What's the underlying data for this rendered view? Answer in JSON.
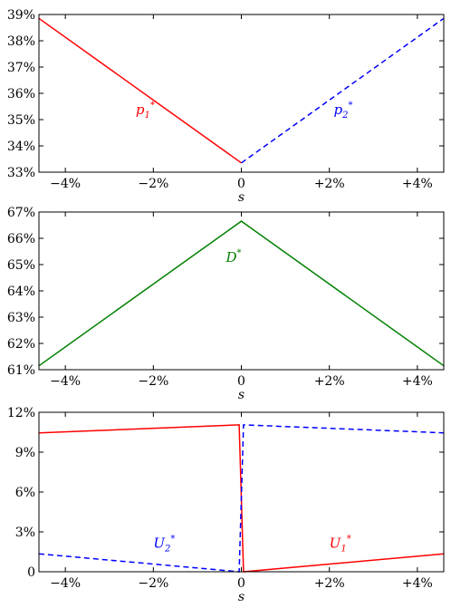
{
  "chart_data": [
    {
      "type": "line",
      "xlabel": "s",
      "xlim": [
        -4.6,
        4.6
      ],
      "ylim": [
        33,
        39
      ],
      "x_ticks": [
        "−4%",
        "−2%",
        "0",
        "+2%",
        "+4%"
      ],
      "x_tick_values": [
        -4,
        -2,
        0,
        2,
        4
      ],
      "y_ticks": [
        "33%",
        "34%",
        "35%",
        "36%",
        "37%",
        "38%",
        "39%"
      ],
      "y_tick_values": [
        33,
        34,
        35,
        36,
        37,
        38,
        39
      ],
      "series": [
        {
          "color": "#ff0000",
          "dash": "solid",
          "x": [
            -4.6,
            0
          ],
          "y": [
            38.85,
            33.35
          ]
        },
        {
          "color": "#0000ff",
          "dash": "dashed",
          "x": [
            0,
            4.6
          ],
          "y": [
            33.35,
            38.85
          ]
        }
      ],
      "annotations": [
        {
          "base": "p",
          "sub": "1",
          "sup": "*",
          "color": "#ff0000",
          "x": -2.4,
          "y": 35.2
        },
        {
          "base": "p",
          "sub": "2",
          "sup": "*",
          "color": "#0000ff",
          "x": 2.1,
          "y": 35.2
        }
      ]
    },
    {
      "type": "line",
      "xlabel": "s",
      "xlim": [
        -4.6,
        4.6
      ],
      "ylim": [
        61,
        67
      ],
      "x_ticks": [
        "−4%",
        "−2%",
        "0",
        "+2%",
        "+4%"
      ],
      "x_tick_values": [
        -4,
        -2,
        0,
        2,
        4
      ],
      "y_ticks": [
        "61%",
        "62%",
        "63%",
        "64%",
        "65%",
        "66%",
        "67%"
      ],
      "y_tick_values": [
        61,
        62,
        63,
        64,
        65,
        66,
        67
      ],
      "series": [
        {
          "color": "#008000",
          "dash": "solid",
          "x": [
            -4.6,
            0,
            4.6
          ],
          "y": [
            61.15,
            66.65,
            61.15
          ]
        }
      ],
      "annotations": [
        {
          "base": "D",
          "sub": "",
          "sup": "*",
          "color": "#008000",
          "x": -0.35,
          "y": 65.1
        }
      ]
    },
    {
      "type": "line",
      "xlabel": "s",
      "xlim": [
        -4.6,
        4.6
      ],
      "ylim": [
        0,
        12
      ],
      "x_ticks": [
        "−4%",
        "−2%",
        "0",
        "+2%",
        "+4%"
      ],
      "x_tick_values": [
        -4,
        -2,
        0,
        2,
        4
      ],
      "y_ticks": [
        "0",
        "3%",
        "6%",
        "9%",
        "12%"
      ],
      "y_tick_values": [
        0,
        3,
        6,
        9,
        12
      ],
      "series": [
        {
          "color": "#ff0000",
          "dash": "solid",
          "x": [
            -4.6,
            -0.05,
            0.05,
            4.6
          ],
          "y": [
            10.45,
            11.05,
            0,
            1.35
          ]
        },
        {
          "color": "#0000ff",
          "dash": "dashed",
          "x": [
            -4.6,
            -0.05,
            0.05,
            4.6
          ],
          "y": [
            1.35,
            0,
            11.05,
            10.45
          ]
        }
      ],
      "annotations": [
        {
          "base": "U",
          "sub": "2",
          "sup": "*",
          "color": "#0000ff",
          "x": -2.0,
          "y": 1.8
        },
        {
          "base": "U",
          "sub": "1",
          "sup": "*",
          "color": "#ff0000",
          "x": 2.0,
          "y": 1.8
        }
      ]
    }
  ]
}
